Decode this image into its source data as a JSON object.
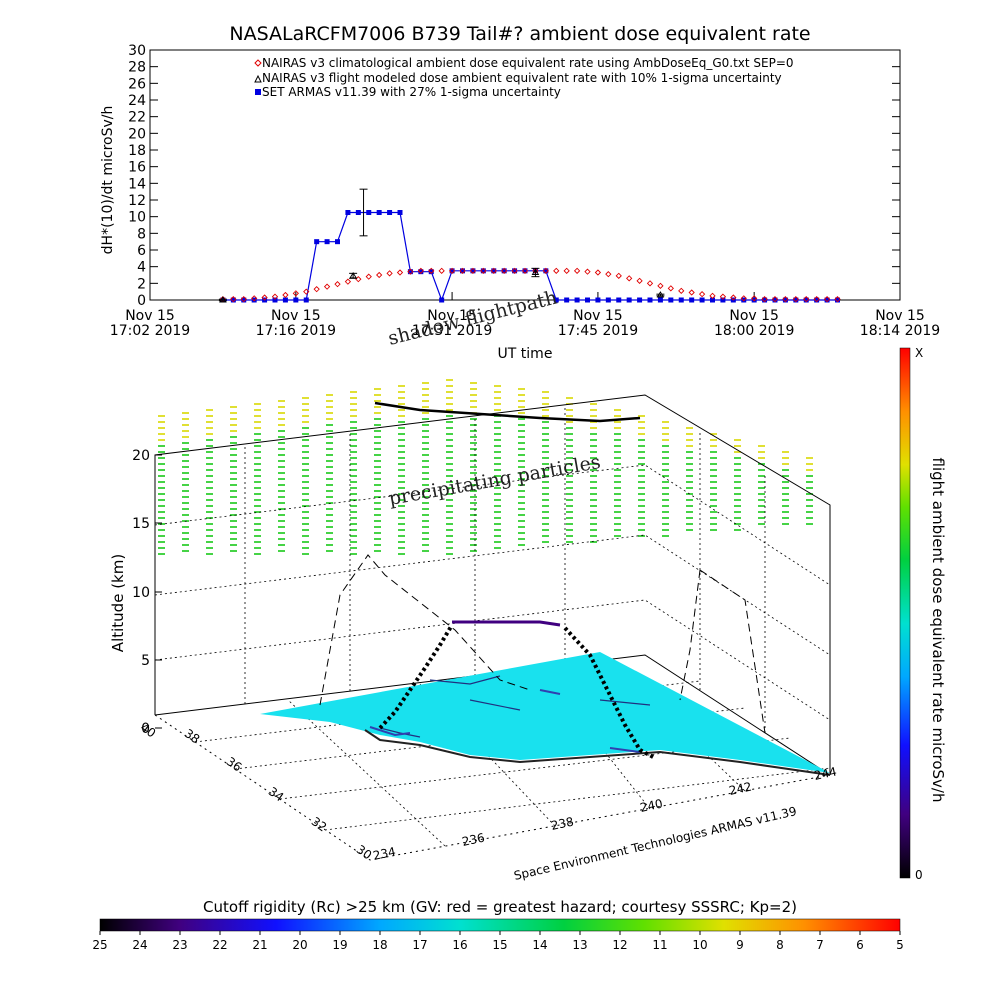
{
  "title": "NASALaRCFM7006  B739 Tail#? ambient dose equivalent rate",
  "colors": {
    "nairas_clim": "#e00000",
    "armas": "#0000e0",
    "particles_yellow": "#d8d800",
    "particles_green": "#18c818",
    "surface": "#19e1ee",
    "colorbar_bottom": "#000000",
    "colorbar_top": "#ff0000"
  },
  "chart_data": [
    {
      "type": "line",
      "ylabel": "dH*(10)/dt microSv/h",
      "xlabel": "UT time",
      "ylim": [
        0,
        30
      ],
      "yticks": [
        0,
        2,
        4,
        6,
        8,
        10,
        12,
        14,
        16,
        18,
        20,
        22,
        24,
        26,
        28,
        30
      ],
      "x_unit": "minutes after 17:02 UT on Nov 15 2019",
      "xlim": [
        0,
        72
      ],
      "xticks": [
        {
          "x": 0,
          "line1": "Nov 15",
          "line2": "17:02 2019"
        },
        {
          "x": 14,
          "line1": "Nov 15",
          "line2": "17:16 2019"
        },
        {
          "x": 29,
          "line1": "Nov 15",
          "line2": "17:31 2019"
        },
        {
          "x": 43,
          "line1": "Nov 15",
          "line2": "17:45 2019"
        },
        {
          "x": 58,
          "line1": "Nov 15",
          "line2": "18:00 2019"
        },
        {
          "x": 72,
          "line1": "Nov 15",
          "line2": "18:14 2019"
        }
      ],
      "grid": false,
      "legend_position": "top",
      "series": [
        {
          "name": "NAIRAS v3 climatological ambient dose equivalent rate using AmbDoseEq_G0.txt SEP=0",
          "marker": "diamond",
          "x": [
            7,
            8,
            9,
            10,
            11,
            12,
            13,
            14,
            15,
            16,
            17,
            18,
            19,
            20,
            21,
            22,
            23,
            24,
            25,
            26,
            27,
            28,
            29,
            30,
            31,
            32,
            33,
            34,
            35,
            36,
            37,
            38,
            39,
            40,
            41,
            42,
            43,
            44,
            45,
            46,
            47,
            48,
            49,
            50,
            51,
            52,
            53,
            54,
            55,
            56,
            57,
            58,
            59,
            60,
            61,
            62,
            63,
            64,
            65,
            66
          ],
          "y": [
            0.1,
            0.1,
            0.1,
            0.2,
            0.3,
            0.4,
            0.6,
            0.8,
            1.0,
            1.3,
            1.6,
            1.9,
            2.2,
            2.5,
            2.8,
            3.0,
            3.2,
            3.3,
            3.4,
            3.5,
            3.5,
            3.5,
            3.5,
            3.5,
            3.5,
            3.5,
            3.5,
            3.5,
            3.5,
            3.5,
            3.5,
            3.5,
            3.5,
            3.5,
            3.5,
            3.4,
            3.3,
            3.1,
            2.9,
            2.6,
            2.3,
            2.0,
            1.7,
            1.4,
            1.1,
            0.9,
            0.7,
            0.5,
            0.4,
            0.3,
            0.2,
            0.2,
            0.1,
            0.1,
            0.1,
            0.1,
            0.1,
            0.1,
            0.1,
            0.1
          ]
        },
        {
          "name": "NAIRAS v3 flight modeled dose ambient equivalent rate with 10% 1-sigma uncertainty",
          "marker": "triangle",
          "x": [
            7,
            19.5,
            37,
            49
          ],
          "y": [
            0,
            2.9,
            3.3,
            0.6
          ],
          "errors": [
            0.1,
            0.3,
            0.5,
            0.1
          ]
        },
        {
          "name": "SET ARMAS v11.39 with 27% 1-sigma uncertainty",
          "marker": "square",
          "x": [
            7,
            8,
            9,
            10,
            11,
            12,
            13,
            14,
            15,
            16,
            17,
            18,
            19,
            20,
            21,
            22,
            23,
            24,
            25,
            26,
            27,
            28,
            29,
            30,
            31,
            32,
            33,
            34,
            35,
            36,
            37,
            38,
            39,
            40,
            41,
            42,
            43,
            44,
            45,
            46,
            47,
            48,
            49,
            50,
            51,
            52,
            53,
            54,
            55,
            56,
            57,
            58,
            59,
            60,
            61,
            62,
            63,
            64,
            65,
            66
          ],
          "y": [
            0,
            0,
            0,
            0,
            0,
            0,
            0,
            0,
            0,
            7,
            7,
            7,
            10.5,
            10.5,
            10.5,
            10.5,
            10.5,
            10.5,
            3.4,
            3.4,
            3.4,
            0,
            3.5,
            3.5,
            3.5,
            3.5,
            3.5,
            3.5,
            3.5,
            3.5,
            3.5,
            3.5,
            0,
            0,
            0,
            0,
            0,
            0,
            0,
            0,
            0,
            0,
            0,
            0,
            0,
            0,
            0,
            0,
            0,
            0,
            0,
            0,
            0,
            0,
            0,
            0,
            0,
            0,
            0,
            0
          ],
          "error_bars": [
            {
              "x": 20.5,
              "y": 10.5,
              "err": 2.8
            }
          ]
        }
      ]
    },
    {
      "type": "scatter",
      "title": "",
      "zlabel": "Altitude (km)",
      "z_ticks": [
        "0",
        "5",
        "10",
        "15",
        "20"
      ],
      "lat_ticks": [
        "30",
        "32",
        "34",
        "36",
        "38",
        "40"
      ],
      "lon_ticks": [
        "234",
        "236",
        "238",
        "240",
        "242",
        "244"
      ],
      "credit": "Space Environment Technologies ARMAS v11.39",
      "annotations": [
        "shadow flightpath",
        "precipitating particles"
      ],
      "colorbar": {
        "label": "flight ambient dose equivalent rate microSv/h",
        "top_label": "X",
        "bottom_label": "0"
      },
      "flight_track": {
        "note": "altitude profile of flight, km",
        "altitude_km": [
          0,
          1,
          2,
          3,
          4,
          5,
          6,
          7,
          8,
          8,
          8,
          8,
          8,
          8,
          7,
          6,
          5,
          4,
          3,
          2,
          1,
          0
        ]
      }
    },
    {
      "type": "heatmap",
      "title": "Cutoff rigidity (Rc) >25 km (GV: red = greatest hazard; courtesy SSSRC; Kp=2)",
      "tick_labels": [
        "25",
        "24",
        "23",
        "22",
        "21",
        "20",
        "19",
        "18",
        "17",
        "16",
        "15",
        "14",
        "13",
        "12",
        "11",
        "10",
        "9",
        "8",
        "7",
        "6",
        "5"
      ]
    }
  ]
}
